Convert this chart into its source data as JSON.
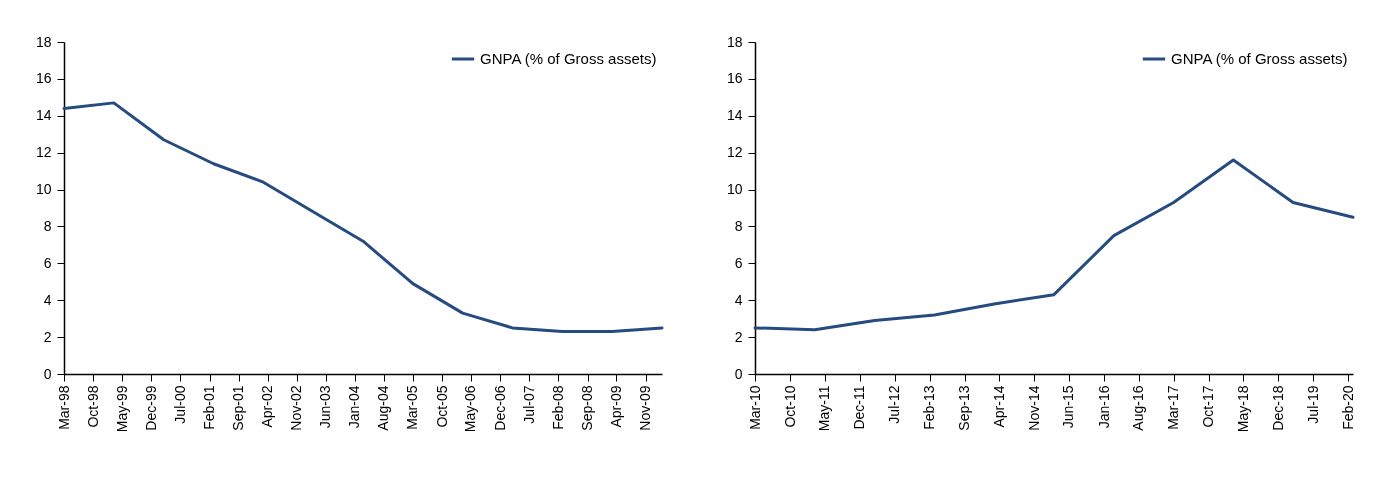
{
  "chart_data": [
    {
      "type": "line",
      "x": [
        "1998-03",
        "1999-03",
        "2000-03",
        "2001-03",
        "2002-03",
        "2003-03",
        "2004-03",
        "2005-03",
        "2006-03",
        "2007-03",
        "2008-03",
        "2009-03",
        "2010-03"
      ],
      "series": [
        {
          "name": "GNPA (% of Gross assets)",
          "color": "#254b80",
          "values": [
            14.4,
            14.7,
            12.7,
            11.4,
            10.4,
            8.8,
            7.2,
            4.9,
            3.3,
            2.5,
            2.3,
            2.3,
            2.5
          ]
        }
      ],
      "xlim": [
        "1998-03",
        "2010-03"
      ],
      "xticks": [
        {
          "value": "1998-03",
          "label": "Mar-98"
        },
        {
          "value": "1998-10",
          "label": "Oct-98"
        },
        {
          "value": "1999-05",
          "label": "May-99"
        },
        {
          "value": "1999-12",
          "label": "Dec-99"
        },
        {
          "value": "2000-07",
          "label": "Jul-00"
        },
        {
          "value": "2001-02",
          "label": "Feb-01"
        },
        {
          "value": "2001-09",
          "label": "Sep-01"
        },
        {
          "value": "2002-04",
          "label": "Apr-02"
        },
        {
          "value": "2002-11",
          "label": "Nov-02"
        },
        {
          "value": "2003-06",
          "label": "Jun-03"
        },
        {
          "value": "2004-01",
          "label": "Jan-04"
        },
        {
          "value": "2004-08",
          "label": "Aug-04"
        },
        {
          "value": "2005-03",
          "label": "Mar-05"
        },
        {
          "value": "2005-10",
          "label": "Oct-05"
        },
        {
          "value": "2006-05",
          "label": "May-06"
        },
        {
          "value": "2006-12",
          "label": "Dec-06"
        },
        {
          "value": "2007-07",
          "label": "Jul-07"
        },
        {
          "value": "2008-02",
          "label": "Feb-08"
        },
        {
          "value": "2008-09",
          "label": "Sep-08"
        },
        {
          "value": "2009-04",
          "label": "Apr-09"
        },
        {
          "value": "2009-11",
          "label": "Nov-09"
        }
      ],
      "ylim": [
        0,
        18
      ],
      "yticks": [
        0,
        2,
        4,
        6,
        8,
        10,
        12,
        14,
        16,
        18
      ],
      "grid": false,
      "legend": "top right",
      "marker": "none",
      "line_style": "solid"
    },
    {
      "type": "line",
      "x": [
        "2010-03",
        "2011-03",
        "2012-03",
        "2013-03",
        "2014-03",
        "2015-03",
        "2016-03",
        "2017-03",
        "2018-03",
        "2019-03",
        "2020-03"
      ],
      "series": [
        {
          "name": "GNPA (% of Gross assets)",
          "color": "#254b80",
          "values": [
            2.5,
            2.4,
            2.9,
            3.2,
            3.8,
            4.3,
            7.5,
            9.3,
            11.6,
            9.3,
            8.5
          ]
        }
      ],
      "xlim": [
        "2010-03",
        "2020-03"
      ],
      "xticks": [
        {
          "value": "2010-03",
          "label": "Mar-10"
        },
        {
          "value": "2010-10",
          "label": "Oct-10"
        },
        {
          "value": "2011-05",
          "label": "May-11"
        },
        {
          "value": "2011-12",
          "label": "Dec-11"
        },
        {
          "value": "2012-07",
          "label": "Jul-12"
        },
        {
          "value": "2013-02",
          "label": "Feb-13"
        },
        {
          "value": "2013-09",
          "label": "Sep-13"
        },
        {
          "value": "2014-04",
          "label": "Apr-14"
        },
        {
          "value": "2014-11",
          "label": "Nov-14"
        },
        {
          "value": "2015-06",
          "label": "Jun-15"
        },
        {
          "value": "2016-01",
          "label": "Jan-16"
        },
        {
          "value": "2016-08",
          "label": "Aug-16"
        },
        {
          "value": "2017-03",
          "label": "Mar-17"
        },
        {
          "value": "2017-10",
          "label": "Oct-17"
        },
        {
          "value": "2018-05",
          "label": "May-18"
        },
        {
          "value": "2018-12",
          "label": "Dec-18"
        },
        {
          "value": "2019-07",
          "label": "Jul-19"
        },
        {
          "value": "2020-02",
          "label": "Feb-20"
        }
      ],
      "ylim": [
        0,
        18
      ],
      "yticks": [
        0,
        2,
        4,
        6,
        8,
        10,
        12,
        14,
        16,
        18
      ],
      "grid": false,
      "legend": "top right",
      "marker": "none",
      "line_style": "solid"
    }
  ]
}
